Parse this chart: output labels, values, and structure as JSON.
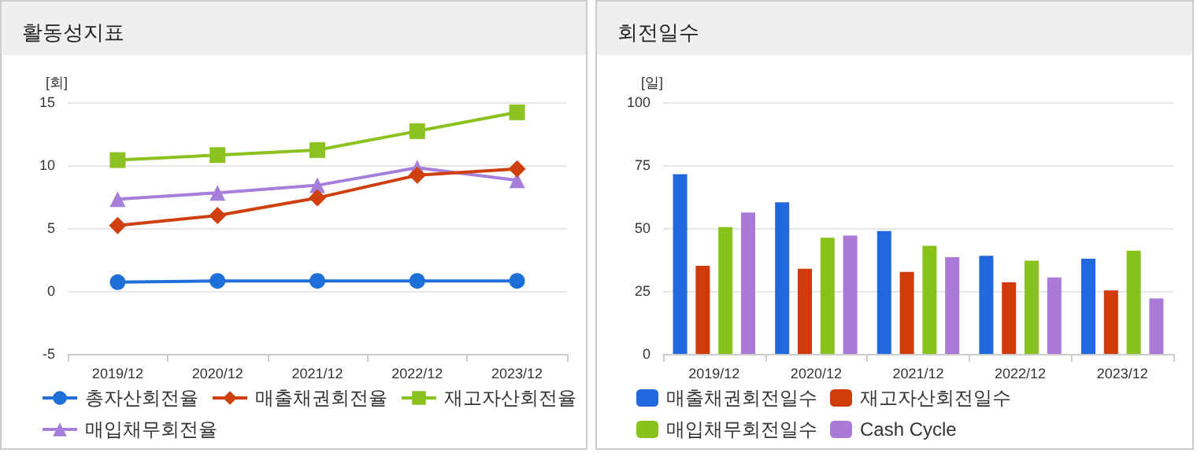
{
  "chart_data": [
    {
      "type": "line",
      "title": "활동성지표",
      "ylabel": "[회]",
      "categories": [
        "2019/12",
        "2020/12",
        "2021/12",
        "2022/12",
        "2023/12"
      ],
      "ylim": [
        -5,
        15
      ],
      "yticks": [
        -5,
        0,
        5,
        10,
        15
      ],
      "grid": "y",
      "legend": "bottom",
      "series": [
        {
          "name": "총자산회전율",
          "color": "#1f6fd9",
          "marker": "circle",
          "values": [
            0.7,
            0.8,
            0.8,
            0.8,
            0.8
          ]
        },
        {
          "name": "매출채권회전율",
          "color": "#d0400f",
          "marker": "diamond",
          "values": [
            5.2,
            6.0,
            7.4,
            9.2,
            9.7
          ]
        },
        {
          "name": "재고자산회전율",
          "color": "#8cc21f",
          "marker": "square",
          "values": [
            10.4,
            10.8,
            11.2,
            12.7,
            14.2
          ]
        },
        {
          "name": "매입채무회전율",
          "color": "#a57fdb",
          "marker": "triangle",
          "values": [
            7.3,
            7.8,
            8.4,
            9.8,
            8.8
          ]
        }
      ]
    },
    {
      "type": "bar",
      "title": "회전일수",
      "ylabel": "[일]",
      "categories": [
        "2019/12",
        "2020/12",
        "2021/12",
        "2022/12",
        "2023/12"
      ],
      "ylim": [
        0,
        100
      ],
      "yticks": [
        0,
        25,
        50,
        75,
        100
      ],
      "grid": "y",
      "legend": "bottom",
      "series": [
        {
          "name": "매출채권회전일수",
          "color": "#2167dd",
          "values": [
            71.4,
            60.2,
            48.8,
            39,
            37.8
          ]
        },
        {
          "name": "재고자산회전일수",
          "color": "#d13a0a",
          "values": [
            35,
            33.8,
            32.6,
            28.4,
            25.2
          ]
        },
        {
          "name": "매입채무회전일수",
          "color": "#87c31a",
          "values": [
            50.4,
            46.2,
            43,
            37,
            41
          ]
        },
        {
          "name": "Cash Cycle",
          "color": "#a97ad8",
          "values": [
            56.2,
            47,
            38.4,
            30.4,
            22
          ]
        }
      ]
    }
  ]
}
